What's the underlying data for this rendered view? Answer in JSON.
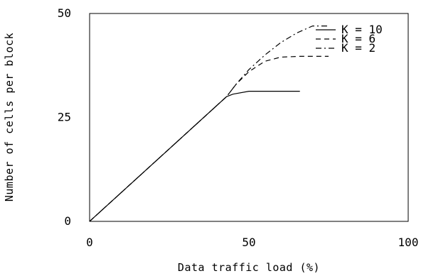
{
  "chart_data": {
    "type": "line",
    "title": "",
    "xlabel": "Data traffic load (%)",
    "ylabel": "Number of cells per block",
    "xlim": [
      0,
      100
    ],
    "ylim": [
      0,
      50
    ],
    "xticks": [
      "0",
      "50",
      "100"
    ],
    "yticks": [
      "0",
      "25",
      "50"
    ],
    "grid": false,
    "legend_position": "top-right",
    "series": [
      {
        "name": "K = 10",
        "dash": "solid",
        "x": [
          0,
          43,
          45,
          50,
          66
        ],
        "y": [
          0,
          30.0,
          30.6,
          31.3,
          31.3
        ]
      },
      {
        "name": "K = 6",
        "dash": "dashed",
        "x": [
          0,
          43,
          46,
          50,
          55,
          60,
          66,
          75
        ],
        "y": [
          0,
          30.0,
          33.0,
          36.0,
          38.5,
          39.5,
          39.7,
          39.7
        ]
      },
      {
        "name": "K = 2",
        "dash": "dashdot",
        "x": [
          0,
          43,
          46,
          50,
          55,
          60,
          65,
          70,
          75
        ],
        "y": [
          0,
          30.0,
          33.0,
          36.5,
          40.0,
          43.0,
          45.3,
          47.0,
          47.0
        ]
      }
    ]
  }
}
